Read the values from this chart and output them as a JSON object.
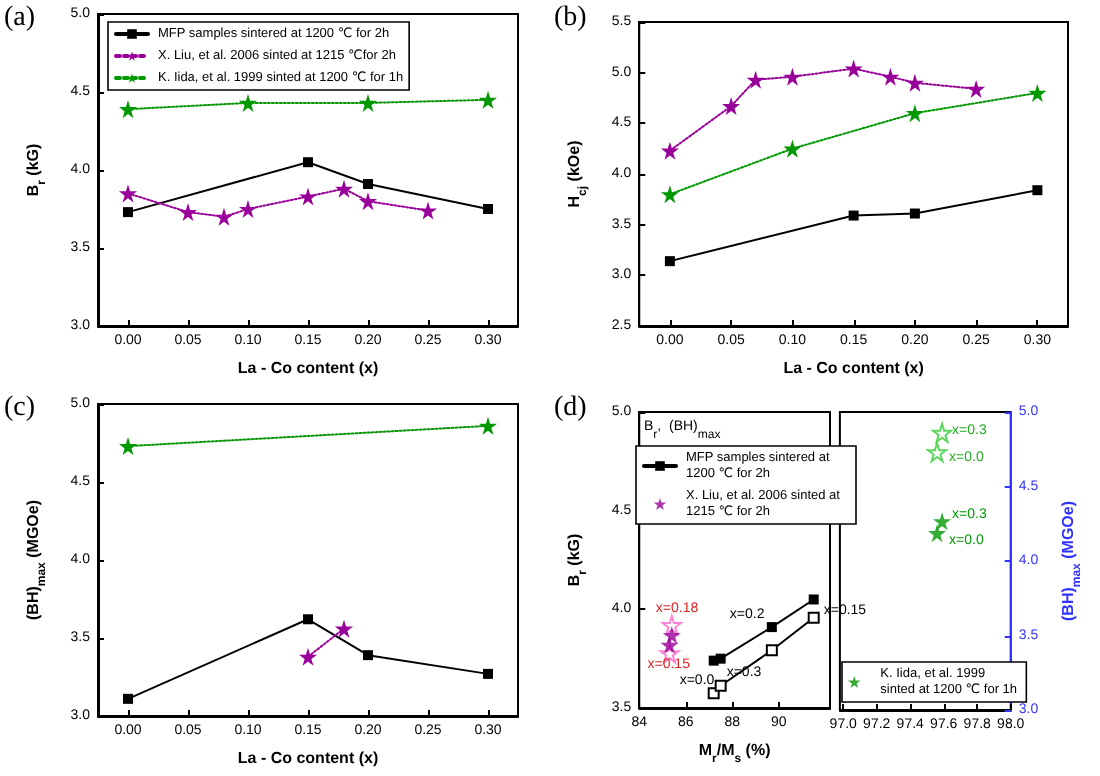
{
  "chart_data": [
    {
      "type": "line",
      "title": "(a)",
      "xlabel": "La - Co content (x)",
      "ylabel": "B$_{r}$ (kG)",
      "xlim": [
        -0.025,
        0.325
      ],
      "xticks": [
        {
          "value": 0,
          "label": "0.00"
        },
        0.05,
        {
          "value": 0.1,
          "label": "0.10"
        },
        0.15,
        {
          "value": 0.2,
          "label": "0.20"
        },
        0.25,
        {
          "value": 0.3,
          "label": "0.30"
        }
      ],
      "ylim": [
        3,
        5
      ],
      "yticks": [
        {
          "value": 3,
          "label": "3.0"
        },
        3.5,
        {
          "value": 4,
          "label": "4.0"
        },
        4.5,
        {
          "value": 5,
          "label": "5.0"
        }
      ],
      "legend": "top left",
      "series": [
        {
          "name": "MFP samples sintered at 1200 ℃ for 2h",
          "color": "#000000",
          "marker": "square",
          "line_style": "solid",
          "x": [
            0,
            0.15,
            0.2,
            0.3
          ],
          "values": [
            3.73,
            4.05,
            3.91,
            3.75
          ]
        },
        {
          "name": "X. Liu, et al. 2006 sinted at 1215 ℃for 2h",
          "color": "#990099",
          "marker": "star",
          "line_style": "dotted",
          "x": [
            0,
            0.05,
            0.08,
            0.1,
            0.15,
            0.18,
            0.2,
            0.25
          ],
          "values": [
            3.85,
            3.73,
            3.7,
            3.75,
            3.83,
            3.88,
            3.8,
            3.74
          ]
        },
        {
          "name": "K. Iida, et al. 1999 sinted at 1200 ℃ for 1h",
          "color": "#009900",
          "marker": "star",
          "line_style": "dotted",
          "x": [
            0,
            0.1,
            0.2,
            0.3
          ],
          "values": [
            4.39,
            4.43,
            4.43,
            4.45
          ]
        }
      ]
    },
    {
      "type": "line",
      "title": "(b)",
      "xlabel": "La - Co content (x)",
      "ylabel": "H$_{cj}$ (kOe)",
      "xlim": [
        -0.025,
        0.325
      ],
      "xticks": [
        {
          "value": 0,
          "label": "0.00"
        },
        0.05,
        {
          "value": 0.1,
          "label": "0.10"
        },
        0.15,
        {
          "value": 0.2,
          "label": "0.20"
        },
        0.25,
        {
          "value": 0.3,
          "label": "0.30"
        }
      ],
      "ylim": [
        2.5,
        5.5
      ],
      "yticks": [
        2.5,
        {
          "value": 3,
          "label": "3.0"
        },
        3.5,
        {
          "value": 4,
          "label": "4.0"
        },
        4.5,
        {
          "value": 5,
          "label": "5.0"
        },
        5.5
      ],
      "series": [
        {
          "color": "#000000",
          "marker": "square",
          "line_style": "solid",
          "x": [
            0,
            0.15,
            0.2,
            0.3
          ],
          "values": [
            3.14,
            3.59,
            3.61,
            3.84
          ]
        },
        {
          "color": "#990099",
          "marker": "star",
          "line_style": "dotted",
          "x": [
            0,
            0.05,
            0.07,
            0.1,
            0.15,
            0.18,
            0.2,
            0.25
          ],
          "values": [
            4.23,
            4.67,
            4.93,
            4.96,
            5.04,
            4.96,
            4.9,
            4.84
          ]
        },
        {
          "color": "#009900",
          "marker": "star",
          "line_style": "dotted",
          "x": [
            0,
            0.1,
            0.2,
            0.3
          ],
          "values": [
            3.8,
            4.25,
            4.6,
            4.8
          ]
        }
      ]
    },
    {
      "type": "line",
      "title": "(c)",
      "xlabel": "La - Co content (x)",
      "ylabel": "(BH)$_{max}$ (MGOe)",
      "xlim": [
        -0.025,
        0.325
      ],
      "xticks": [
        {
          "value": 0,
          "label": "0.00"
        },
        0.05,
        {
          "value": 0.1,
          "label": "0.10"
        },
        0.15,
        {
          "value": 0.2,
          "label": "0.20"
        },
        0.25,
        {
          "value": 0.3,
          "label": "0.30"
        }
      ],
      "ylim": [
        3,
        5
      ],
      "yticks": [
        {
          "value": 3,
          "label": "3.0"
        },
        3.5,
        {
          "value": 4,
          "label": "4.0"
        },
        4.5,
        {
          "value": 5,
          "label": "5.0"
        }
      ],
      "series": [
        {
          "color": "#000000",
          "marker": "square",
          "line_style": "solid",
          "x": [
            0,
            0.15,
            0.2,
            0.3
          ],
          "values": [
            3.11,
            3.62,
            3.39,
            3.27
          ]
        },
        {
          "color": "#990099",
          "marker": "star",
          "line_style": "dotted",
          "x": [
            0.15,
            0.18
          ],
          "values": [
            3.38,
            3.56
          ]
        },
        {
          "color": "#009900",
          "marker": "star",
          "line_style": "dotted",
          "x": [
            0,
            0.3
          ],
          "values": [
            4.73,
            4.86
          ]
        }
      ]
    },
    {
      "type": "line",
      "title": "(d)",
      "xlabel": "M$_{r}$/M$_{s}$ (%)",
      "ylabel": "B$_{r}$ (kG)",
      "legend_title": "B$_{r}$,  (BH)$_{max}$",
      "xlim": [
        84,
        92.2
      ],
      "xticks": [
        84,
        86,
        88,
        90
      ],
      "ylim": [
        3.5,
        5
      ],
      "yticks": [
        3.5,
        {
          "value": 4,
          "label": "4.0"
        },
        4.5,
        {
          "value": 5,
          "label": "5.0"
        }
      ],
      "y2lim": [
        3,
        5
      ],
      "legend": "top left",
      "series": [
        {
          "name": "MFP samples sintered at 1200 ℃ for 2h",
          "color": "#000000",
          "marker": "square",
          "line_style": "solid",
          "x": [
            87.2,
            87.5,
            89.7,
            91.5
          ],
          "values": [
            3.74,
            3.75,
            3.91,
            4.05
          ]
        },
        {
          "color": "#000000",
          "marker": "square",
          "line_style": "solid",
          "axis": "y2",
          "x": [
            87.2,
            87.5,
            89.7,
            91.5
          ],
          "values": [
            3.1,
            3.15,
            3.39,
            3.61
          ]
        },
        {
          "name": "X. Liu, et al. 2006 sinted at 1215 ℃ for 2h",
          "type": "scatter",
          "color": "#990099",
          "marker": "star",
          "x": [
            85.3,
            85.4
          ],
          "values": [
            3.82,
            3.87
          ]
        },
        {
          "type": "scatter",
          "color": "#ff66cc",
          "marker": "star",
          "axis": "y2",
          "x": [
            85.3,
            85.4
          ],
          "values": [
            3.37,
            3.56
          ]
        }
      ],
      "annotations": [
        {
          "text": "x=0.0",
          "x": 87.2,
          "y": 3.74
        },
        {
          "text": "x=0.3",
          "x": 87.5,
          "y": 3.75
        },
        {
          "text": "x=0.2",
          "x": 89.7,
          "y": 3.91
        },
        {
          "text": "x=0.15",
          "x": 91.5,
          "y": 4.05
        },
        {
          "text": "x=0.18",
          "x": 85.4,
          "y": 3.87
        },
        {
          "text": "x=0.15",
          "x": 85.3,
          "y": 3.82
        }
      ]
    },
    {
      "type": "scatter",
      "xlim": [
        96.98,
        98
      ],
      "xticks": [
        {
          "value": 97,
          "label": "97.0"
        },
        97.2,
        97.4,
        97.6,
        97.8,
        {
          "value": 98,
          "label": "98.0"
        }
      ],
      "ylim": [
        3.5,
        5
      ],
      "y2label": "(BH)$_{max}$ (MGOe)",
      "y2lim": [
        3,
        5
      ],
      "y2ticks": [
        {
          "value": 3,
          "label": "3.0"
        },
        3.5,
        {
          "value": 4,
          "label": "4.0"
        },
        4.5,
        {
          "value": 5,
          "label": "5.0"
        }
      ],
      "legend": "bottom left",
      "series": [
        {
          "name": "K. Iida, et al. 1999 sinted at 1200 ℃ for 1h",
          "color": "#009900",
          "marker": "star",
          "x": [
            97.56,
            97.59
          ],
          "values": [
            4.39,
            4.45
          ]
        },
        {
          "color": "#33cc33",
          "marker": "star",
          "axis": "y2",
          "x": [
            97.56,
            97.59
          ],
          "values": [
            4.73,
            4.86
          ]
        }
      ],
      "annotations": [
        {
          "text": "x=0.3",
          "x": 97.59,
          "y": 4.45
        },
        {
          "text": "x=0.0",
          "x": 97.56,
          "y": 4.39
        },
        {
          "text": "x=0.3",
          "x": 97.59,
          "y": 4.86
        },
        {
          "text": "x=0.0",
          "x": 97.56,
          "y": 4.73
        }
      ]
    }
  ]
}
